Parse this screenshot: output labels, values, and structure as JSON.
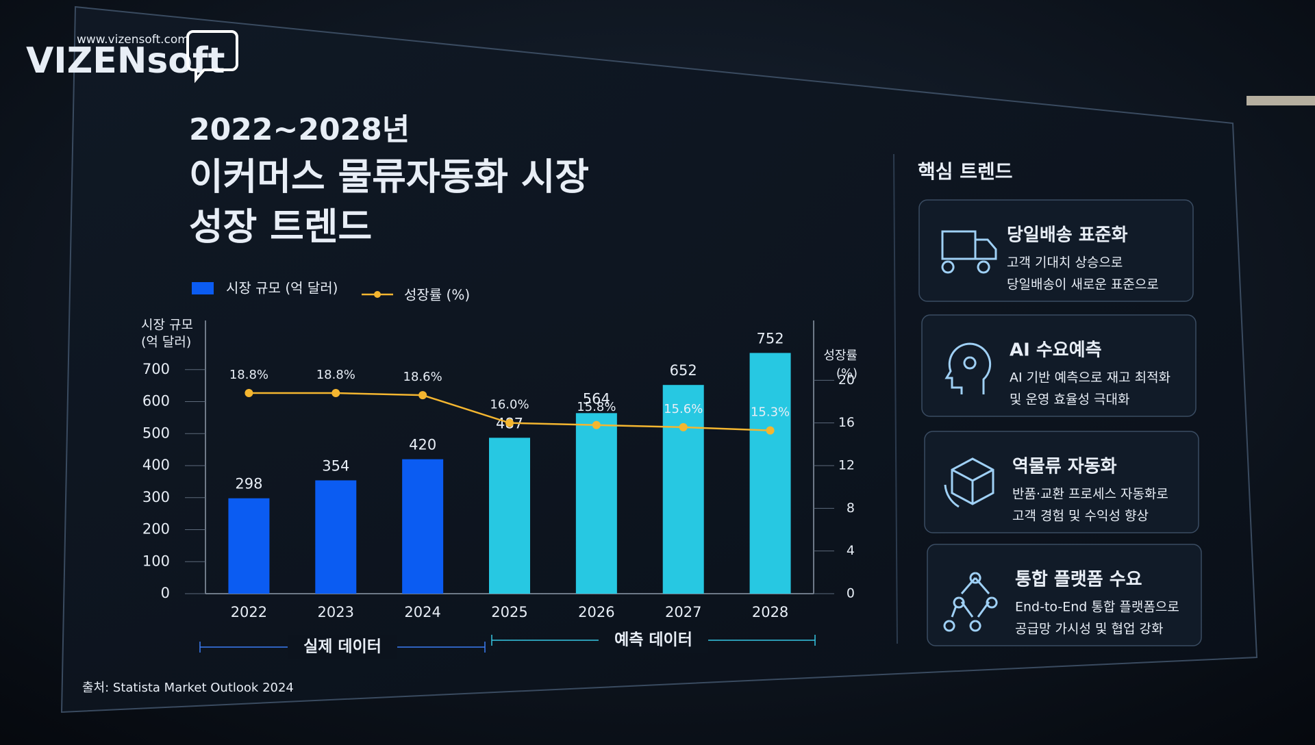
{
  "logo": {
    "url": "www.vizensoft.com",
    "name": "VIZENsoft"
  },
  "chart_data": {
    "type": "bar_line",
    "title": [
      "2022~2028년",
      "이커머스 물류자동화 시장",
      "성장 트렌드"
    ],
    "y_label": [
      "시장 규모",
      "(억 달러)"
    ],
    "y2_label": [
      "성장률",
      "(%)"
    ],
    "categories": [
      "2022",
      "2023",
      "2024",
      "2025",
      "2026",
      "2027",
      "2028"
    ],
    "series": [
      {
        "name": "시장 규모 (억 달러)",
        "type": "bar",
        "color": "#0b5cf2",
        "colors": [
          "#0b5cf2",
          "#0b5cf2",
          "#0b5cf2",
          "#27c8e2",
          "#27c8e2",
          "#27c8e2",
          "#27c8e2"
        ],
        "values": [
          298,
          354,
          420,
          487,
          564,
          652,
          752
        ]
      },
      {
        "name": "성장률 (%)",
        "type": "line",
        "axis": "y2",
        "color": "#f4b630",
        "values": [
          18.8,
          18.8,
          18.6,
          16.0,
          15.8,
          15.6,
          15.3
        ],
        "value_labels": [
          "18.8%",
          "18.8%",
          "18.6%",
          "16.0%",
          "15.8%",
          "15.6%",
          "15.3%"
        ]
      }
    ],
    "ylim": [
      0,
      800
    ],
    "yticks": [
      0,
      100,
      200,
      300,
      400,
      500,
      600,
      700
    ],
    "y2lim": [
      0,
      24
    ],
    "y2ticks": [
      0,
      4,
      8,
      12,
      16,
      20
    ],
    "annotations": [
      "실제 데이터",
      "예측 데이터"
    ],
    "source": "출처: Statista Market Outlook 2024"
  },
  "trends": {
    "title": "핵심 트렌드",
    "items": [
      {
        "title": "당일배송 표준화",
        "lines": [
          "고객 기대치 상승으로",
          "당일배송이 새로운 표준으로"
        ]
      },
      {
        "title": "AI 수요예측",
        "lines": [
          "AI 기반 예측으로 재고 최적화",
          "및 운영 효율성 극대화"
        ]
      },
      {
        "title": "역물류 자동화",
        "lines": [
          "반품·교환 프로세스 자동화로",
          "고객 경험 및 수익성 향상"
        ]
      },
      {
        "title": "통합 플랫폼 수요",
        "lines": [
          "End-to-End 통합 플랫폼으로",
          "공급망 가시성 및 협업 강화"
        ]
      }
    ]
  }
}
